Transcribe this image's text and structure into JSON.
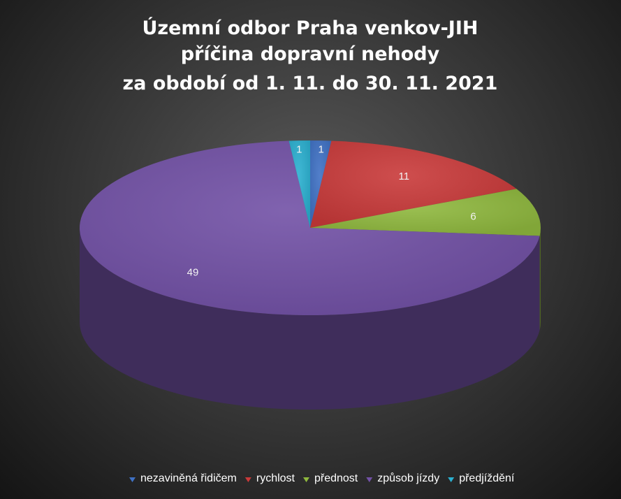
{
  "chart_data": {
    "type": "pie",
    "title_lines": [
      "Územní odbor Praha venkov-JIH",
      "příčina dopravní nehody",
      "za období od 1. 11. do 30. 11. 2021"
    ],
    "categories": [
      "nezaviněná řidičem",
      "rychlost",
      "přednost",
      "způsob jízdy",
      "předjíždění"
    ],
    "values": [
      1,
      11,
      6,
      49,
      1
    ],
    "colors": [
      "#3f71c4",
      "#c93a3a",
      "#8fb83e",
      "#7251a6",
      "#2bb0d0"
    ],
    "legend_position": "bottom",
    "show_data_labels": true
  }
}
